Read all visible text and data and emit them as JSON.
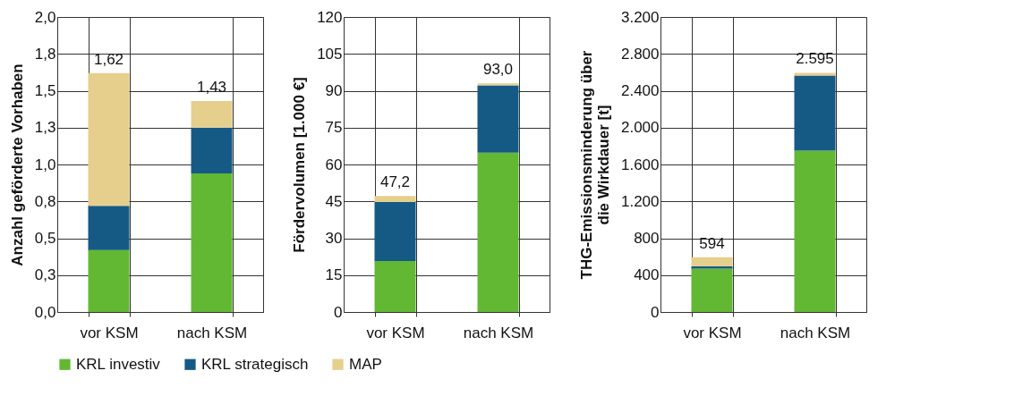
{
  "chart_data": [
    {
      "type": "bar",
      "stacked": true,
      "ylabel": "Anzahl geförderte Vorhaben",
      "categories": [
        "vor KSM",
        "nach KSM"
      ],
      "ylim": [
        0,
        2
      ],
      "yticks": [
        {
          "value": 0,
          "label": "0,0"
        },
        {
          "value": 0.25,
          "label": "0,3"
        },
        {
          "value": 0.5,
          "label": "0,5"
        },
        {
          "value": 0.75,
          "label": "0,8"
        },
        {
          "value": 1,
          "label": "1,0"
        },
        {
          "value": 1.25,
          "label": "1,3"
        },
        {
          "value": 1.5,
          "label": "1,5"
        },
        {
          "value": 1.75,
          "label": "1,8"
        },
        {
          "value": 2,
          "label": "2,0"
        }
      ],
      "grid": true,
      "legend": "bottom",
      "totals": [
        "1,62",
        "1,43"
      ],
      "series": [
        {
          "name": "KRL investiv",
          "color": "#62b832",
          "values": [
            0.42,
            0.94
          ]
        },
        {
          "name": "KRL strategisch",
          "color": "#155a85",
          "values": [
            0.3,
            0.31
          ]
        },
        {
          "name": "MAP",
          "color": "#e6cf8c",
          "values": [
            0.9,
            0.18
          ]
        }
      ]
    },
    {
      "type": "bar",
      "stacked": true,
      "ylabel": "Fördervolumen [1.000 €]",
      "categories": [
        "vor KSM",
        "nach KSM"
      ],
      "ylim": [
        0,
        120
      ],
      "yticks": [
        0,
        15,
        30,
        45,
        60,
        75,
        90,
        105,
        120
      ],
      "grid": true,
      "legend": "bottom",
      "totals": [
        "47,2",
        "93,0"
      ],
      "series": [
        {
          "name": "KRL investiv",
          "color": "#62b832",
          "values": [
            20.7,
            64.8
          ]
        },
        {
          "name": "KRL strategisch",
          "color": "#155a85",
          "values": [
            24.0,
            27.4
          ]
        },
        {
          "name": "MAP",
          "color": "#e6cf8c",
          "values": [
            2.5,
            0.8
          ]
        }
      ]
    },
    {
      "type": "bar",
      "stacked": true,
      "ylabel": "THG-Emissionsminderung über\ndie Wirkdauer [t]",
      "categories": [
        "vor KSM",
        "nach KSM"
      ],
      "ylim": [
        0,
        3200
      ],
      "yticks": [
        0,
        400,
        800,
        {
          "value": 1200,
          "label": "1.200"
        },
        {
          "value": 1600,
          "label": "1.600"
        },
        {
          "value": 2000,
          "label": "2.000"
        },
        {
          "value": 2400,
          "label": "2.400"
        },
        {
          "value": 2800,
          "label": "2.800"
        },
        {
          "value": 3200,
          "label": "3.200"
        }
      ],
      "grid": true,
      "legend": "bottom",
      "totals": [
        "594",
        "2.595"
      ],
      "series": [
        {
          "name": "KRL investiv",
          "color": "#62b832",
          "values": [
            470,
            1750
          ]
        },
        {
          "name": "KRL strategisch",
          "color": "#155a85",
          "values": [
            24,
            815
          ]
        },
        {
          "name": "MAP",
          "color": "#e6cf8c",
          "values": [
            100,
            30
          ]
        }
      ]
    }
  ]
}
